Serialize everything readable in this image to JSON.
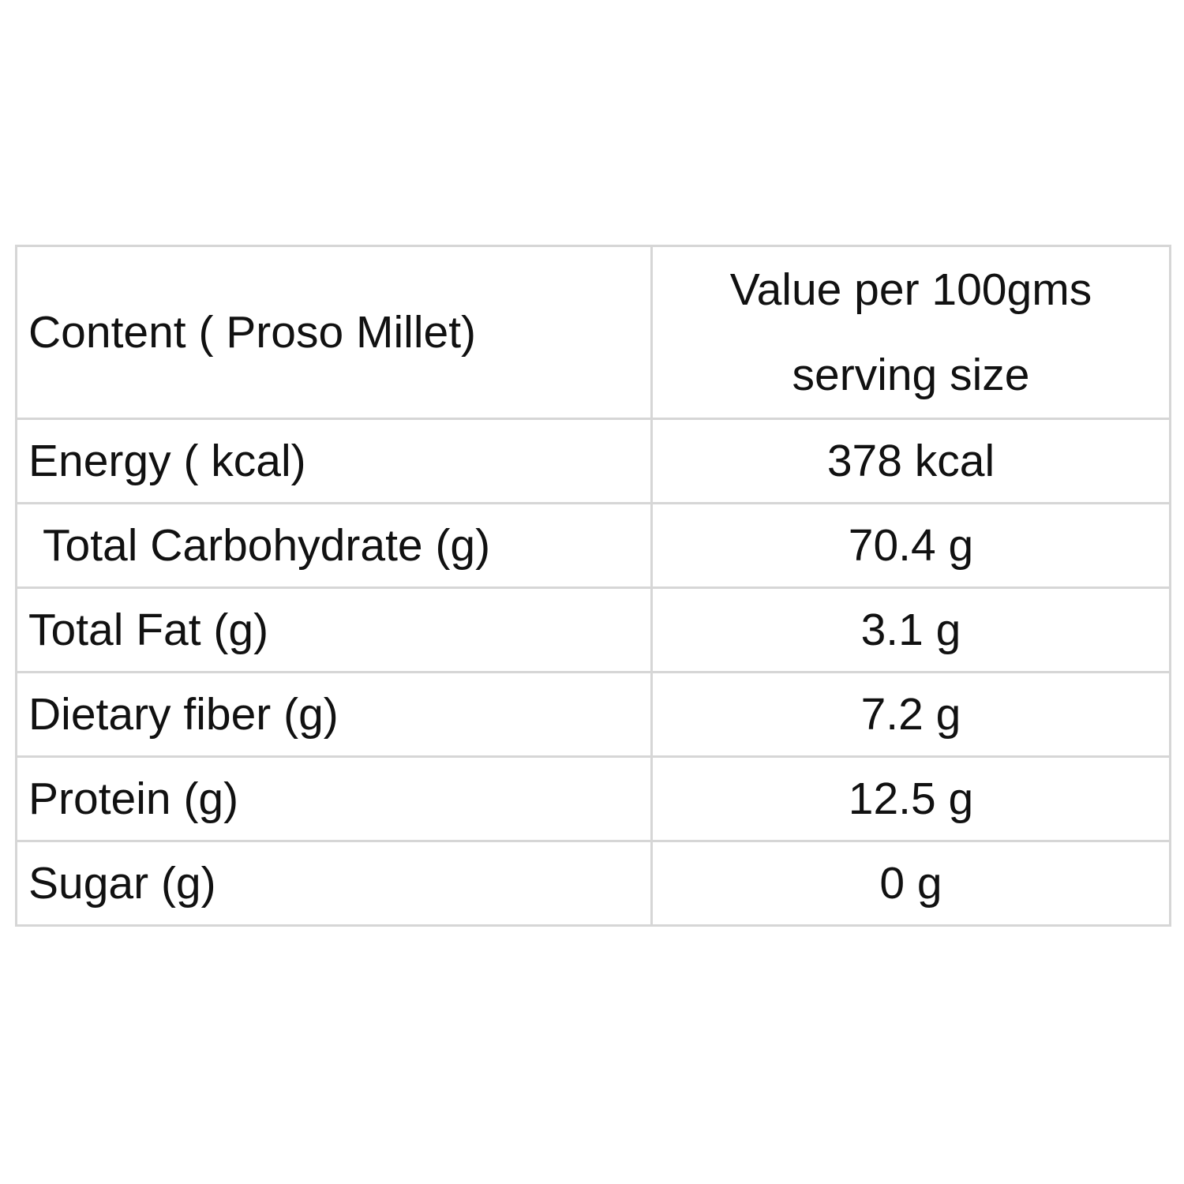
{
  "table": {
    "header": {
      "content": "Content ( Proso Millet)",
      "value_lines": [
        "Value per 100gms",
        "serving size"
      ]
    },
    "rows": [
      [
        "Energy ( kcal)",
        "378 kcal"
      ],
      [
        "Total Carbohydrate (g)",
        "70.4 g"
      ],
      [
        "Total Fat (g)",
        "3.1 g"
      ],
      [
        "Dietary fiber (g)",
        "7.2 g"
      ],
      [
        "Protein (g)",
        "12.5 g"
      ],
      [
        "Sugar (g)",
        "0 g"
      ]
    ]
  }
}
